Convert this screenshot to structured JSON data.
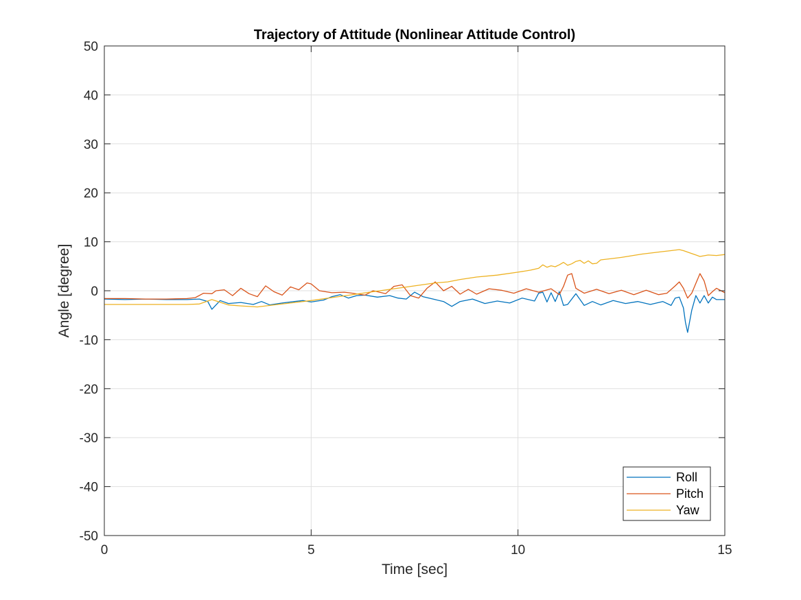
{
  "chart_data": {
    "type": "line",
    "title": "Trajectory of Attitude (Nonlinear Attitude Control)",
    "xlabel": "Time [sec]",
    "ylabel": "Angle [degree]",
    "xlim": [
      0,
      15
    ],
    "ylim": [
      -50,
      50
    ],
    "xticks": [
      0,
      5,
      10,
      15
    ],
    "yticks": [
      -50,
      -40,
      -30,
      -20,
      -10,
      0,
      10,
      20,
      30,
      40,
      50
    ],
    "grid": true,
    "legend_position": "bottom-right",
    "series": [
      {
        "name": "Roll",
        "color": "#0072BD",
        "x": [
          0,
          0.5,
          1,
          1.5,
          2,
          2.3,
          2.5,
          2.6,
          2.8,
          3,
          3.3,
          3.6,
          3.8,
          4,
          4.3,
          4.6,
          4.8,
          5,
          5.3,
          5.5,
          5.7,
          5.9,
          6.1,
          6.3,
          6.6,
          6.9,
          7.1,
          7.3,
          7.5,
          7.7,
          8,
          8.2,
          8.4,
          8.6,
          8.9,
          9.2,
          9.5,
          9.8,
          10.1,
          10.4,
          10.5,
          10.6,
          10.7,
          10.8,
          10.9,
          11,
          11.1,
          11.2,
          11.4,
          11.6,
          11.8,
          12,
          12.3,
          12.6,
          12.9,
          13.2,
          13.5,
          13.7,
          13.8,
          13.9,
          14,
          14.05,
          14.1,
          14.2,
          14.3,
          14.4,
          14.5,
          14.6,
          14.7,
          14.8,
          15
        ],
        "y": [
          -1.7,
          -1.8,
          -1.7,
          -1.8,
          -1.8,
          -1.7,
          -2.2,
          -3.8,
          -2,
          -2.6,
          -2.4,
          -2.8,
          -2.2,
          -2.9,
          -2.5,
          -2.2,
          -2,
          -2.3,
          -1.9,
          -1.2,
          -0.8,
          -1.5,
          -1,
          -0.9,
          -1.3,
          -1,
          -1.5,
          -1.7,
          -0.3,
          -1.2,
          -1.8,
          -2.2,
          -3.2,
          -2.2,
          -1.7,
          -2.6,
          -2.1,
          -2.5,
          -1.5,
          -2.1,
          -0.5,
          -0.3,
          -2.3,
          -0.4,
          -2.2,
          -0.2,
          -3,
          -2.8,
          -0.6,
          -3,
          -2.2,
          -2.9,
          -2,
          -2.6,
          -2.2,
          -2.8,
          -2.2,
          -3,
          -1.5,
          -1.3,
          -3.5,
          -6.5,
          -8.5,
          -4,
          -1,
          -2.5,
          -1,
          -2.5,
          -1.3,
          -1.8,
          -1.8
        ]
      },
      {
        "name": "Pitch",
        "color": "#D95319",
        "x": [
          0,
          0.5,
          1,
          1.5,
          2,
          2.2,
          2.4,
          2.6,
          2.7,
          2.9,
          3.1,
          3.3,
          3.5,
          3.7,
          3.9,
          4.1,
          4.3,
          4.5,
          4.7,
          4.9,
          5,
          5.2,
          5.5,
          5.8,
          6,
          6.3,
          6.5,
          6.8,
          7,
          7.2,
          7.4,
          7.6,
          7.8,
          8,
          8.2,
          8.4,
          8.6,
          8.8,
          9,
          9.3,
          9.6,
          9.9,
          10.2,
          10.5,
          10.8,
          11,
          11.1,
          11.2,
          11.3,
          11.4,
          11.6,
          11.9,
          12.2,
          12.5,
          12.8,
          13.1,
          13.4,
          13.6,
          13.8,
          13.9,
          14,
          14.1,
          14.2,
          14.3,
          14.4,
          14.5,
          14.6,
          14.7,
          14.8,
          15
        ],
        "y": [
          -1.6,
          -1.6,
          -1.7,
          -1.7,
          -1.6,
          -1.4,
          -0.5,
          -0.6,
          0,
          0.2,
          -1,
          0.5,
          -0.6,
          -1.2,
          1,
          -0.2,
          -0.9,
          0.8,
          0.2,
          1.6,
          1.4,
          0,
          -0.4,
          -0.3,
          -0.5,
          -0.9,
          0,
          -0.6,
          0.9,
          1.2,
          -1,
          -1.5,
          0.5,
          1.8,
          0,
          0.9,
          -0.7,
          0.3,
          -0.7,
          0.4,
          0.1,
          -0.5,
          0.4,
          -0.3,
          0.4,
          -0.8,
          0.9,
          3.2,
          3.5,
          0.5,
          -0.5,
          0.3,
          -0.6,
          0.1,
          -0.8,
          0.1,
          -0.8,
          -0.5,
          1,
          1.8,
          0.5,
          -1.5,
          -0.5,
          1.5,
          3.5,
          2,
          -1,
          -0.2,
          0.5,
          -0.4
        ]
      },
      {
        "name": "Yaw",
        "color": "#EDB120",
        "x": [
          0,
          0.5,
          1,
          1.5,
          2,
          2.3,
          2.6,
          3,
          3.3,
          3.7,
          4,
          4.5,
          5,
          5.5,
          6,
          6.5,
          7,
          7.5,
          8,
          8.3,
          8.6,
          9,
          9.5,
          10,
          10.3,
          10.5,
          10.6,
          10.7,
          10.8,
          10.9,
          11,
          11.1,
          11.2,
          11.3,
          11.4,
          11.5,
          11.6,
          11.7,
          11.8,
          11.9,
          12,
          12.5,
          13,
          13.5,
          13.7,
          13.9,
          14,
          14.2,
          14.4,
          14.6,
          14.8,
          15
        ],
        "y": [
          -2.8,
          -2.8,
          -2.8,
          -2.8,
          -2.8,
          -2.7,
          -1.8,
          -2.9,
          -3.1,
          -3.3,
          -3,
          -2.5,
          -2,
          -1.4,
          -0.8,
          -0.2,
          0.4,
          1,
          1.6,
          1.8,
          2.3,
          2.8,
          3.2,
          3.8,
          4.2,
          4.6,
          5.3,
          4.8,
          5.1,
          4.9,
          5.3,
          5.8,
          5.2,
          5.5,
          6,
          6.2,
          5.6,
          6.1,
          5.5,
          5.6,
          6.3,
          6.8,
          7.5,
          8,
          8.2,
          8.4,
          8.2,
          7.6,
          7,
          7.3,
          7.2,
          7.4
        ]
      }
    ]
  }
}
